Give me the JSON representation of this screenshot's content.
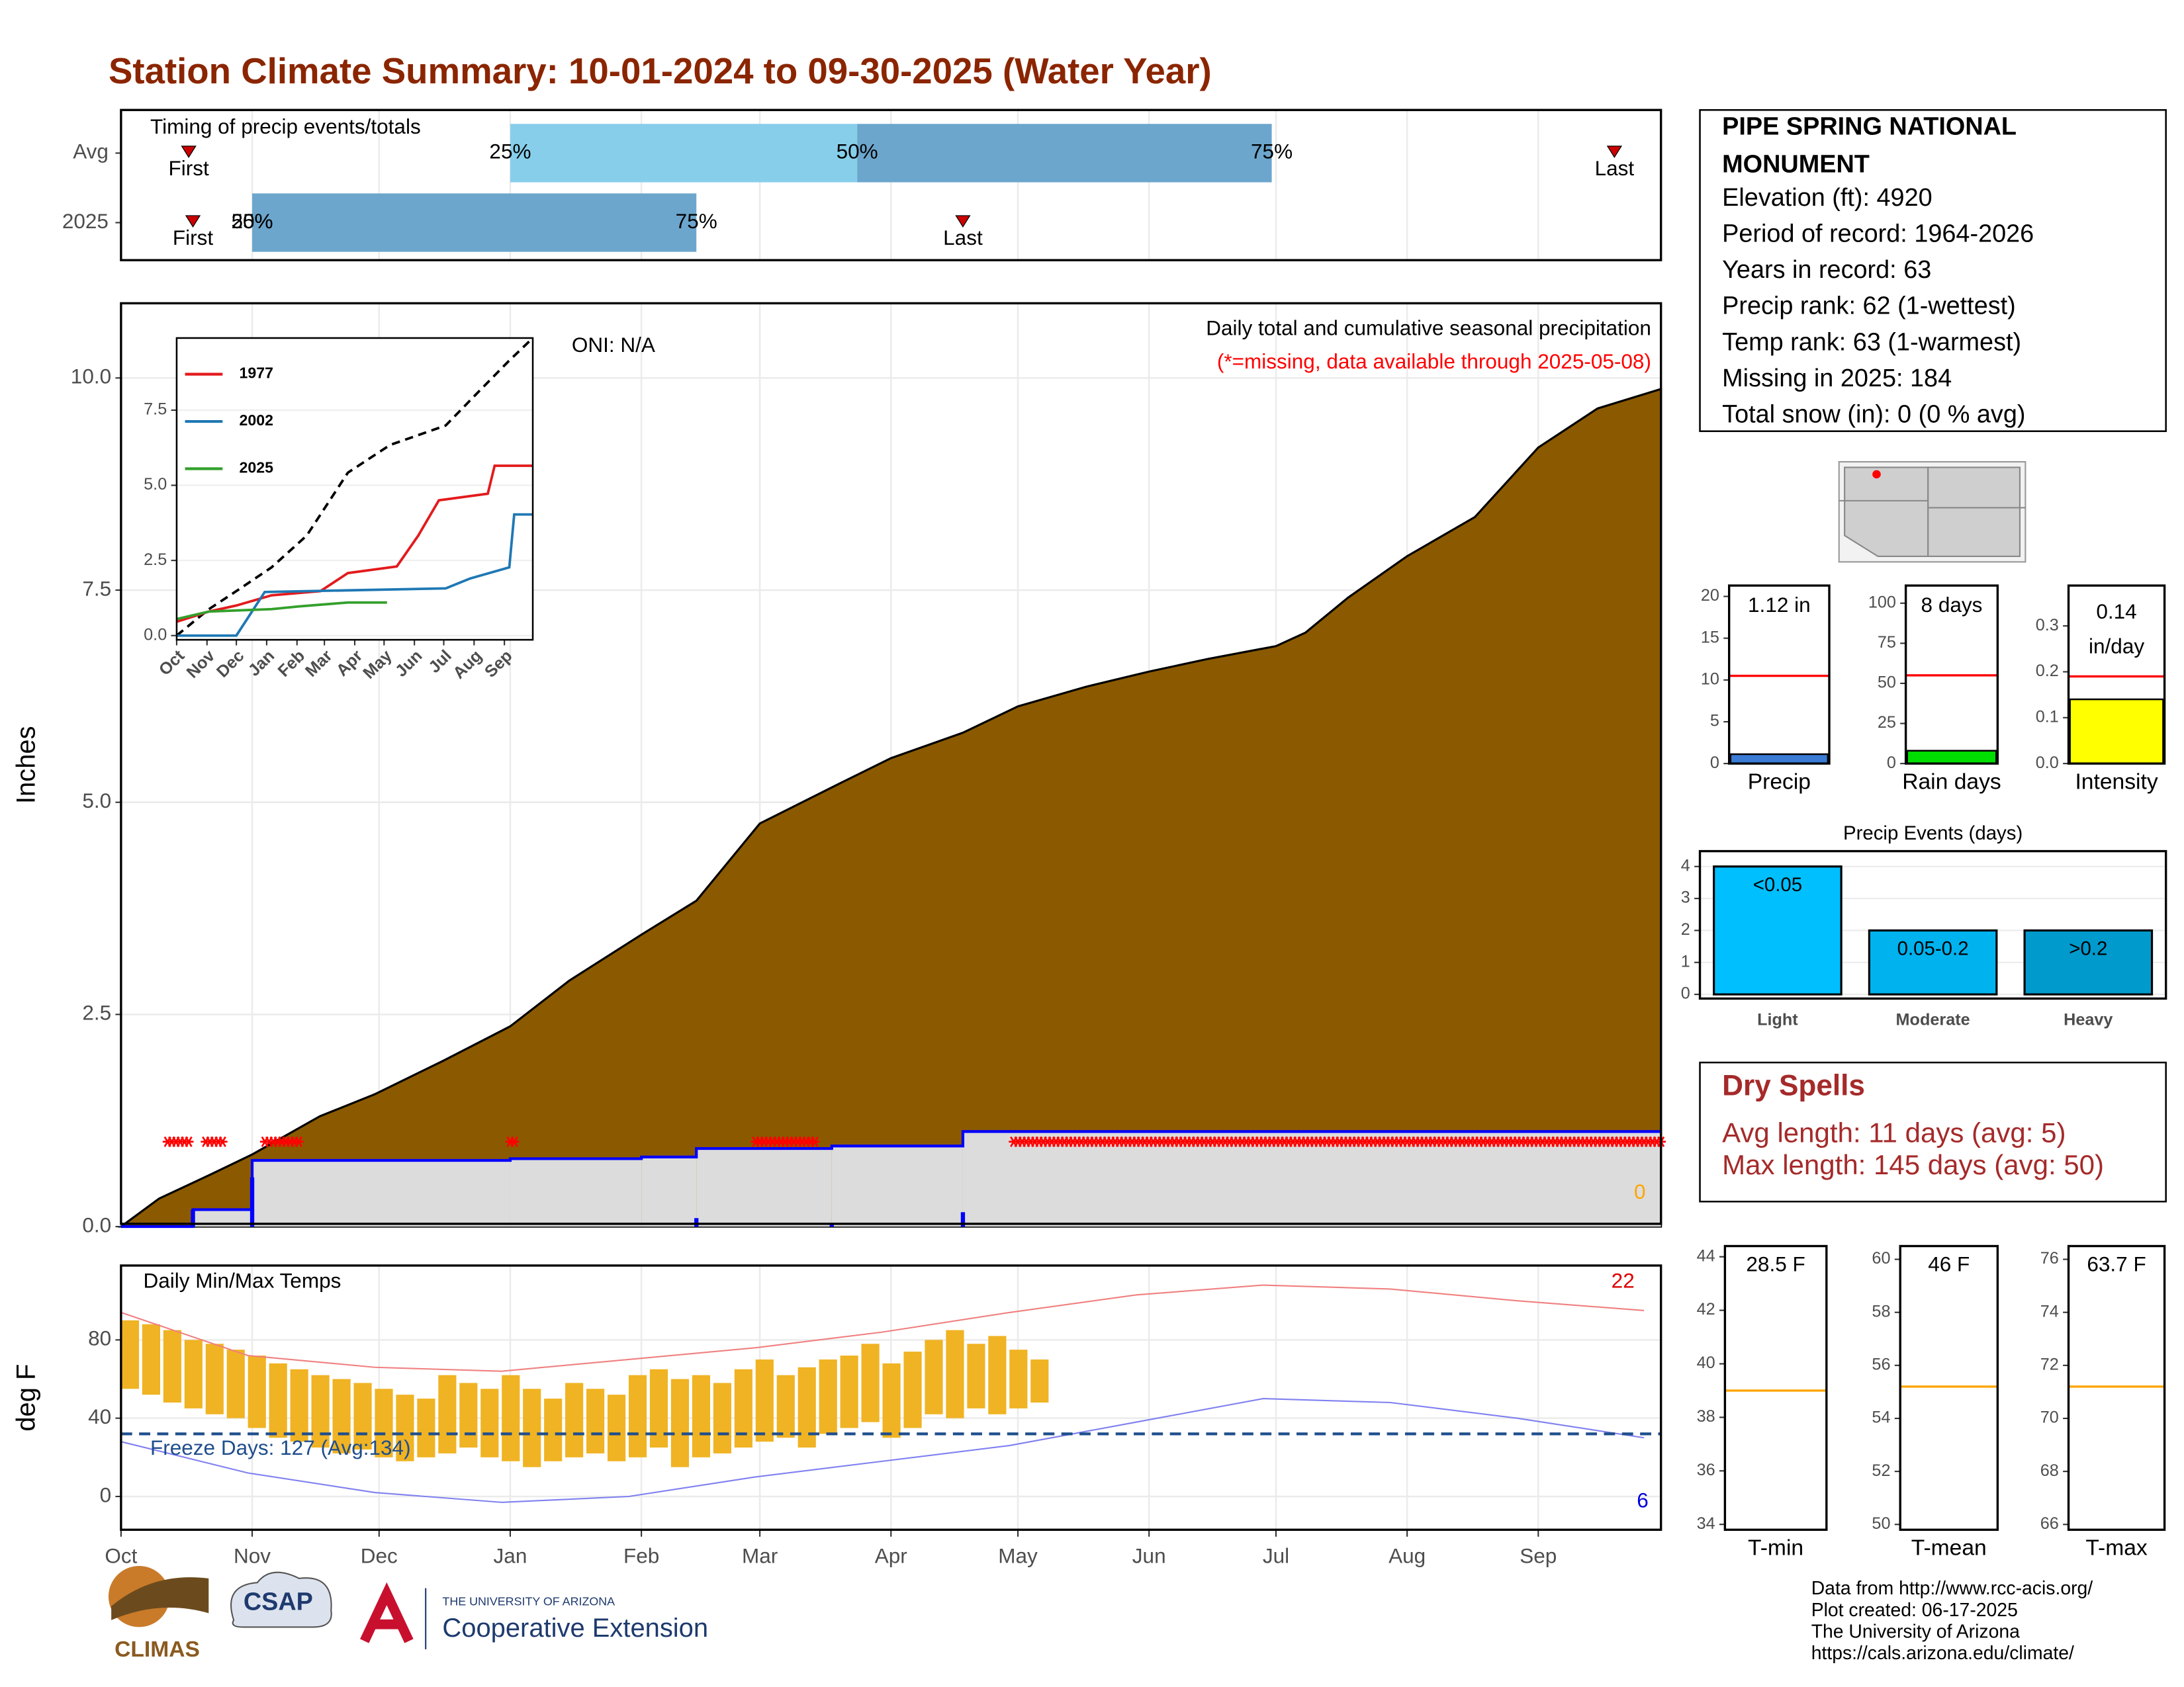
{
  "title": "Station Climate Summary: 10-01-2024 to 09-30-2025 (Water Year)",
  "station": {
    "name": [
      "PIPE SPRING NATIONAL",
      "MONUMENT"
    ],
    "lines": [
      "Elevation (ft): 4920",
      "Period of record: 1964-2026",
      "Years in record: 63",
      "Precip rank: 62 (1-wettest)",
      "Temp rank: 63 (1-warmest)",
      "Missing in 2025: 184",
      "Total snow (in): 0 (0 % avg)"
    ]
  },
  "dry_spells": {
    "title": "Dry Spells",
    "lines": [
      "Avg length: 11 days (avg: 5)",
      "Max length: 145 days (avg: 50)"
    ]
  },
  "footer": [
    "Data from http://www.rcc-acis.org/",
    "Plot created: 06-17-2025",
    "The University of Arizona",
    "https://cals.arizona.edu/climate/"
  ],
  "logos": {
    "climas": "CLIMAS",
    "csap": "CSAP",
    "ua_small": "THE UNIVERSITY OF ARIZONA",
    "ua_big": "Cooperative Extension"
  },
  "chart_data": [
    {
      "type": "timing",
      "title": "Timing of precip events/totals",
      "xlim": [
        0,
        364
      ],
      "categories": [
        "Avg",
        "2025"
      ],
      "first_label": "First",
      "last_label": "Last",
      "quantile_labels": [
        "25%",
        "50%",
        "75%"
      ],
      "first": [
        16,
        17
      ],
      "q25": [
        92,
        31
      ],
      "q50": [
        174,
        31
      ],
      "q75": [
        272,
        136
      ],
      "last": [
        353,
        199
      ],
      "colors": [
        "#87ceeb",
        "#6ca6cd"
      ],
      "marker_color": "#cc0000"
    },
    {
      "type": "area",
      "title": "Daily total and cumulative seasonal precipitation",
      "subtitle": "(*=missing, data available through 2025-05-08)",
      "annotation": "ONI: N/A",
      "end_label": "0",
      "ylabel": "Inches",
      "xlim": [
        0,
        364
      ],
      "ylim": [
        0,
        10.88
      ],
      "yticks": [
        {
          "value": 0,
          "label": "0.0"
        },
        {
          "value": 2.5,
          "label": "2.5"
        },
        {
          "value": 5,
          "label": "5.0"
        },
        {
          "value": 7.5,
          "label": "7.5"
        },
        {
          "value": 10,
          "label": "10.0"
        }
      ],
      "average_cumulative": {
        "color": "#8b5a00",
        "x": [
          0,
          9,
          21,
          31,
          47,
          60,
          76,
          92,
          106,
          123,
          136,
          151,
          169,
          182,
          199,
          212,
          228,
          243,
          257,
          273,
          280,
          290,
          304,
          320,
          335,
          349,
          364
        ],
        "values": [
          0,
          0.33,
          0.61,
          0.85,
          1.3,
          1.56,
          1.95,
          2.36,
          2.9,
          3.44,
          3.84,
          4.75,
          5.2,
          5.52,
          5.82,
          6.13,
          6.36,
          6.54,
          6.69,
          6.84,
          7.0,
          7.41,
          7.9,
          8.36,
          9.18,
          9.64,
          9.87
        ]
      },
      "cumulative": {
        "color": "#0000ff",
        "fill": "#dcdcdc",
        "x": [
          0,
          17,
          31,
          92,
          123,
          136,
          168,
          199,
          364
        ],
        "values": [
          0,
          0.2,
          0.78,
          0.8,
          0.82,
          0.92,
          0.95,
          1.12,
          1.12
        ]
      },
      "daily": {
        "color": "#0000ff",
        "x": [
          17,
          31,
          136,
          168,
          199
        ],
        "values": [
          0.2,
          0.58,
          0.1,
          0.03,
          0.17
        ]
      },
      "missing": {
        "color": "#ff0000",
        "value": 1.0,
        "ranges": [
          [
            11,
            16
          ],
          [
            20,
            24
          ],
          [
            34,
            42
          ],
          [
            92,
            93
          ],
          [
            150,
            164
          ],
          [
            211,
            364
          ]
        ]
      }
    },
    {
      "type": "line",
      "xlim": [
        0,
        364
      ],
      "ylim": [
        -0.14,
        9.9
      ],
      "yticks": [
        {
          "value": 0,
          "label": "0.0"
        },
        {
          "value": 2.5,
          "label": "2.5"
        },
        {
          "value": 5,
          "label": "5.0"
        },
        {
          "value": 7.5,
          "label": "7.5"
        }
      ],
      "xticks": [
        {
          "value": 0,
          "label": "Oct"
        },
        {
          "value": 31,
          "label": "Nov"
        },
        {
          "value": 61,
          "label": "Dec"
        },
        {
          "value": 92,
          "label": "Jan"
        },
        {
          "value": 123,
          "label": "Feb"
        },
        {
          "value": 151,
          "label": "Mar"
        },
        {
          "value": 182,
          "label": "Apr"
        },
        {
          "value": 212,
          "label": "May"
        },
        {
          "value": 243,
          "label": "Jun"
        },
        {
          "value": 273,
          "label": "Jul"
        },
        {
          "value": 304,
          "label": "Aug"
        },
        {
          "value": 335,
          "label": "Sep"
        }
      ],
      "series": [
        {
          "name": "1977",
          "color": "#e31a1c",
          "x": [
            0,
            33,
            61,
            97,
            147,
            175,
            225,
            247,
            268,
            318,
            325,
            364
          ],
          "values": [
            0.46,
            0.8,
            1.0,
            1.34,
            1.48,
            2.08,
            2.3,
            3.33,
            4.5,
            4.72,
            5.65,
            5.65
          ]
        },
        {
          "name": "2002",
          "color": "#1f78b4",
          "x": [
            0,
            61,
            90,
            275,
            300,
            340,
            345,
            364
          ],
          "values": [
            0,
            0,
            1.45,
            1.57,
            1.9,
            2.27,
            4.03,
            4.03
          ]
        },
        {
          "name": "2025",
          "color": "#33a02c",
          "x": [
            0,
            33,
            97,
            125,
            175,
            215
          ],
          "values": [
            0.55,
            0.8,
            0.88,
            0.97,
            1.1,
            1.1
          ]
        }
      ],
      "average": {
        "color": "#000000",
        "dash": true,
        "x": [
          0,
          33,
          61,
          97,
          133,
          175,
          218,
          275,
          304,
          339,
          364
        ],
        "values": [
          0,
          0.88,
          1.48,
          2.27,
          3.33,
          5.42,
          6.34,
          6.99,
          7.96,
          9.12,
          9.9
        ]
      }
    },
    {
      "type": "range",
      "title": "Daily Min/Max Temps",
      "ylabel": "deg F",
      "xlim": [
        0,
        364
      ],
      "ylim": [
        -17,
        118
      ],
      "yticks": [
        0,
        40,
        80
      ],
      "xticks": [
        {
          "value": 0,
          "label": "Oct"
        },
        {
          "value": 31,
          "label": "Nov"
        },
        {
          "value": 61,
          "label": "Dec"
        },
        {
          "value": 92,
          "label": "Jan"
        },
        {
          "value": 123,
          "label": "Feb"
        },
        {
          "value": 151,
          "label": "Mar"
        },
        {
          "value": 182,
          "label": "Apr"
        },
        {
          "value": 212,
          "label": "May"
        },
        {
          "value": 243,
          "label": "Jun"
        },
        {
          "value": 273,
          "label": "Jul"
        },
        {
          "value": 304,
          "label": "Aug"
        },
        {
          "value": 335,
          "label": "Sep"
        }
      ],
      "bar_color": "#f0b323",
      "bar_days": 5,
      "x": [
        0,
        5,
        10,
        15,
        20,
        25,
        30,
        35,
        40,
        45,
        50,
        55,
        60,
        65,
        70,
        75,
        80,
        85,
        90,
        95,
        100,
        105,
        110,
        115,
        120,
        125,
        130,
        135,
        140,
        145,
        150,
        155,
        160,
        165,
        170,
        175,
        180,
        185,
        190,
        195,
        200,
        205,
        210,
        215
      ],
      "max": [
        90,
        88,
        85,
        80,
        78,
        75,
        72,
        68,
        65,
        62,
        60,
        58,
        55,
        52,
        50,
        62,
        58,
        55,
        62,
        55,
        50,
        58,
        55,
        52,
        62,
        65,
        60,
        62,
        58,
        65,
        70,
        62,
        66,
        70,
        72,
        78,
        68,
        74,
        80,
        85,
        78,
        82,
        75,
        70
      ],
      "min": [
        55,
        52,
        48,
        45,
        42,
        40,
        35,
        30,
        28,
        25,
        22,
        24,
        20,
        18,
        20,
        22,
        25,
        20,
        18,
        15,
        18,
        20,
        22,
        18,
        20,
        25,
        15,
        20,
        22,
        25,
        28,
        30,
        25,
        32,
        35,
        38,
        30,
        35,
        42,
        40,
        45,
        42,
        45,
        48
      ],
      "record_high": {
        "color": "#f08080",
        "x": [
          0,
          30,
          60,
          90,
          120,
          150,
          180,
          210,
          240,
          270,
          300,
          330,
          360
        ],
        "values": [
          94,
          72,
          66,
          64,
          70,
          76,
          84,
          94,
          103,
          108,
          106,
          100,
          95
        ]
      },
      "record_low": {
        "color": "#8080f0",
        "x": [
          0,
          30,
          60,
          90,
          120,
          150,
          180,
          210,
          240,
          270,
          300,
          330,
          360
        ],
        "values": [
          28,
          12,
          2,
          -3,
          0,
          10,
          18,
          26,
          38,
          50,
          48,
          40,
          30
        ]
      },
      "freeze": {
        "value": 32,
        "label": "Freeze Days: 127 (Avg:134)",
        "color": "#1f4e8c"
      },
      "high_count_label": "22",
      "low_count_label": "6"
    },
    {
      "type": "gauge",
      "xlabel": "Precip",
      "values": [
        1.12
      ],
      "value_labels": [
        "1.12 in"
      ],
      "color": "#3a7bd5",
      "average": 10.5,
      "average_color": "#ff0000",
      "ylim": [
        0,
        21.3
      ],
      "yticks": [
        0,
        5,
        10,
        15,
        20
      ]
    },
    {
      "type": "gauge",
      "xlabel": "Rain days",
      "values": [
        8
      ],
      "value_labels": [
        "8 days"
      ],
      "color": "#00dd00",
      "average": 55,
      "average_color": "#ff0000",
      "ylim": [
        0,
        111
      ],
      "yticks": [
        0,
        25,
        50,
        75,
        100
      ]
    },
    {
      "type": "gauge",
      "xlabel": "Intensity",
      "values": [
        0.14
      ],
      "value_labels": [
        "0.14\nin/day"
      ],
      "color": "#ffff00",
      "average": 0.19,
      "average_color": "#ff0000",
      "ylim": [
        0,
        0.388
      ],
      "yticks": [
        {
          "value": 0,
          "label": "0.0"
        },
        0.1,
        0.2,
        0.3
      ]
    },
    {
      "type": "bar",
      "title": "Precip Events (days)",
      "categories": [
        "Light",
        "Moderate",
        "Heavy"
      ],
      "ranges": [
        "<0.05",
        "0.05-0.2",
        ">0.2"
      ],
      "values": [
        4,
        2,
        2
      ],
      "colors": [
        "#00bfff",
        "#00b2ee",
        "#009acd"
      ],
      "ylim": [
        -0.13,
        4.48
      ],
      "yticks": [
        0,
        1,
        2,
        3,
        4
      ]
    },
    {
      "type": "gauge",
      "xlabel": "T-min",
      "values": [
        28.5
      ],
      "value_labels": [
        "28.5 F"
      ],
      "color": "#ffa500",
      "average": 39.0,
      "average_color": "#ffa500",
      "ylim": [
        33.8,
        44.4
      ],
      "yticks": [
        34,
        36,
        38,
        40,
        42,
        44
      ]
    },
    {
      "type": "gauge",
      "xlabel": "T-mean",
      "values": [
        46
      ],
      "value_labels": [
        "46 F"
      ],
      "color": "#ffa500",
      "average": 55.2,
      "average_color": "#ffa500",
      "ylim": [
        49.8,
        60.5
      ],
      "yticks": [
        50,
        52,
        54,
        56,
        58,
        60
      ]
    },
    {
      "type": "gauge",
      "xlabel": "T-max",
      "values": [
        63.7
      ],
      "value_labels": [
        "63.7 F"
      ],
      "color": "#ffa500",
      "average": 71.2,
      "average_color": "#ffa500",
      "ylim": [
        65.8,
        76.5
      ],
      "yticks": [
        66,
        68,
        70,
        72,
        74,
        76
      ]
    }
  ]
}
